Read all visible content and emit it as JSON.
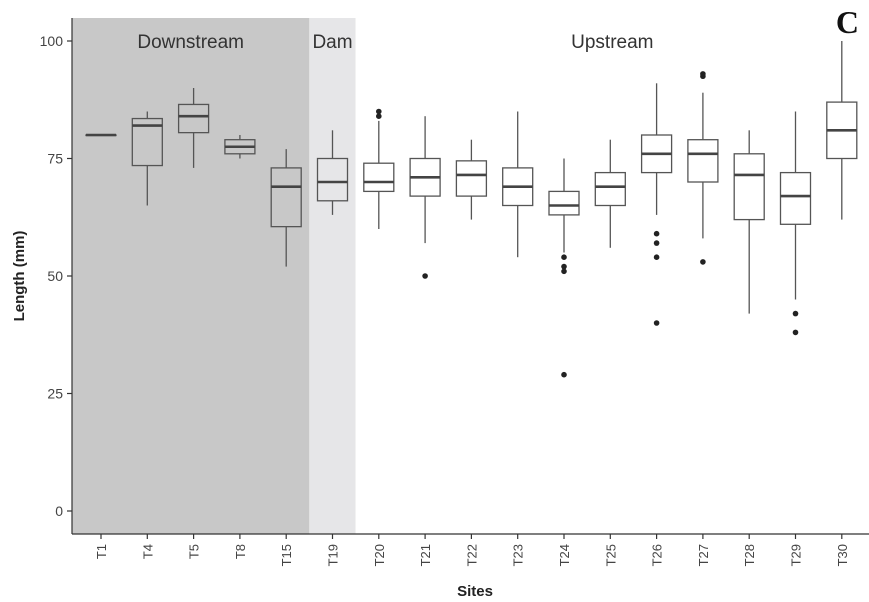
{
  "panel_label": "C",
  "chart_data": {
    "type": "box",
    "title": "",
    "xlabel": "Sites",
    "ylabel": "Length (mm)",
    "ylim": [
      0,
      105
    ],
    "yticks": [
      0,
      25,
      50,
      75,
      100
    ],
    "grid": false,
    "categories": [
      "T1",
      "T4",
      "T5",
      "T8",
      "T15",
      "T19",
      "T20",
      "T21",
      "T22",
      "T23",
      "T24",
      "T25",
      "T26",
      "T27",
      "T28",
      "T29",
      "T30"
    ],
    "regions": [
      {
        "label": "Downstream",
        "from": "T1",
        "to": "T15",
        "color": "#c8c8c8"
      },
      {
        "label": "Dam",
        "from": "T19",
        "to": "T19",
        "color": "#e6e6e8"
      },
      {
        "label": "Upstream",
        "from": "T20",
        "to": "T30",
        "color": "#ffffff"
      }
    ],
    "boxes": [
      {
        "site": "T1",
        "whislo": 80,
        "q1": 80,
        "med": 80,
        "q3": 80,
        "whishi": 80,
        "outliers": []
      },
      {
        "site": "T4",
        "whislo": 65,
        "q1": 73.5,
        "med": 82,
        "q3": 83.5,
        "whishi": 85,
        "outliers": []
      },
      {
        "site": "T5",
        "whislo": 73,
        "q1": 80.5,
        "med": 84,
        "q3": 86.5,
        "whishi": 90,
        "outliers": []
      },
      {
        "site": "T8",
        "whislo": 75,
        "q1": 76,
        "med": 77.5,
        "q3": 79,
        "whishi": 80,
        "outliers": []
      },
      {
        "site": "T15",
        "whislo": 52,
        "q1": 60.5,
        "med": 69,
        "q3": 73,
        "whishi": 77,
        "outliers": []
      },
      {
        "site": "T19",
        "whislo": 63,
        "q1": 66,
        "med": 70,
        "q3": 75,
        "whishi": 81,
        "outliers": []
      },
      {
        "site": "T20",
        "whislo": 60,
        "q1": 68,
        "med": 70,
        "q3": 74,
        "whishi": 83,
        "outliers": [
          84,
          85
        ]
      },
      {
        "site": "T21",
        "whislo": 57,
        "q1": 67,
        "med": 71,
        "q3": 75,
        "whishi": 84,
        "outliers": [
          50
        ]
      },
      {
        "site": "T22",
        "whislo": 62,
        "q1": 67,
        "med": 71.5,
        "q3": 74.5,
        "whishi": 79,
        "outliers": []
      },
      {
        "site": "T23",
        "whislo": 54,
        "q1": 65,
        "med": 69,
        "q3": 73,
        "whishi": 85,
        "outliers": []
      },
      {
        "site": "T24",
        "whislo": 55,
        "q1": 63,
        "med": 65,
        "q3": 68,
        "whishi": 75,
        "outliers": [
          29,
          51,
          52,
          54
        ]
      },
      {
        "site": "T25",
        "whislo": 56,
        "q1": 65,
        "med": 69,
        "q3": 72,
        "whishi": 79,
        "outliers": []
      },
      {
        "site": "T26",
        "whislo": 63,
        "q1": 72,
        "med": 76,
        "q3": 80,
        "whishi": 91,
        "outliers": [
          40,
          54,
          57,
          59
        ]
      },
      {
        "site": "T27",
        "whislo": 58,
        "q1": 70,
        "med": 76,
        "q3": 79,
        "whishi": 89,
        "outliers": [
          53,
          92.5,
          93
        ]
      },
      {
        "site": "T28",
        "whislo": 42,
        "q1": 62,
        "med": 71.5,
        "q3": 76,
        "whishi": 81,
        "outliers": []
      },
      {
        "site": "T29",
        "whislo": 45,
        "q1": 61,
        "med": 67,
        "q3": 72,
        "whishi": 85,
        "outliers": [
          38,
          42
        ]
      },
      {
        "site": "T30",
        "whislo": 62,
        "q1": 75,
        "med": 81,
        "q3": 87,
        "whishi": 100,
        "outliers": []
      }
    ]
  }
}
